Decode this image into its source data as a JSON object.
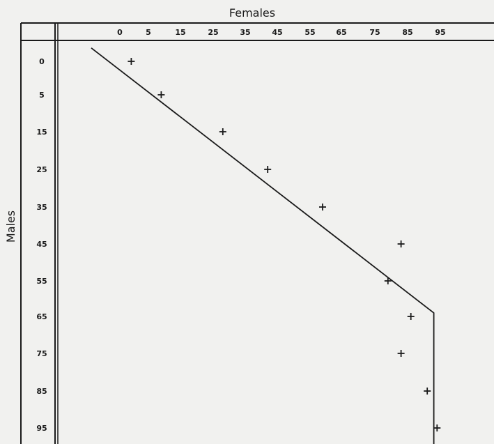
{
  "chart_data": {
    "type": "scatter",
    "title": "",
    "xlabel": "Females",
    "ylabel": "Males",
    "x_ticks": [
      "0",
      "5",
      "15",
      "25",
      "35",
      "45",
      "55",
      "65",
      "75",
      "85",
      "95"
    ],
    "y_ticks": [
      "0",
      "5",
      "15",
      "25",
      "35",
      "45",
      "55",
      "65",
      "75",
      "85",
      "95"
    ],
    "points": [
      {
        "x": 2,
        "y": 0
      },
      {
        "x": 9,
        "y": 5
      },
      {
        "x": 28,
        "y": 15
      },
      {
        "x": 42,
        "y": 25
      },
      {
        "x": 59,
        "y": 35
      },
      {
        "x": 83,
        "y": 45
      },
      {
        "x": 79,
        "y": 55
      },
      {
        "x": 86,
        "y": 65
      },
      {
        "x": 83,
        "y": 75
      },
      {
        "x": 91,
        "y": 85
      },
      {
        "x": 94,
        "y": 95
      }
    ],
    "line": [
      {
        "x": -5,
        "y": -2
      },
      {
        "x": 93,
        "y": 64
      },
      {
        "x": 93,
        "y": 100
      }
    ],
    "grid": false,
    "legend": "none"
  }
}
